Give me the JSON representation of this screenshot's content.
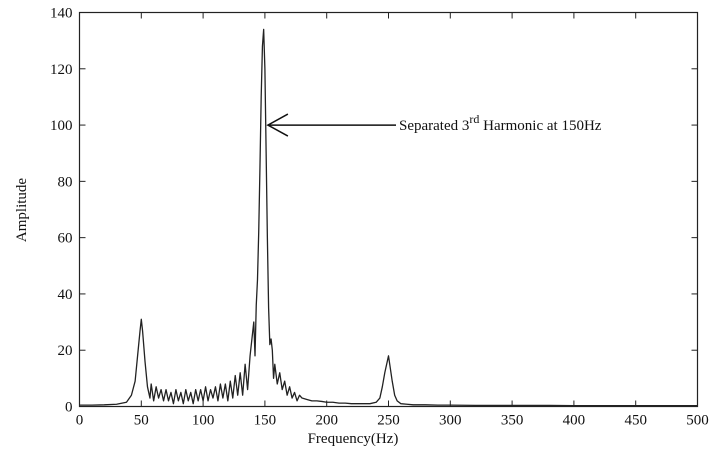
{
  "chart_data": {
    "type": "line",
    "title": "",
    "xlabel": "Frequency(Hz)",
    "ylabel": "Amplitude",
    "xlim": [
      0,
      500
    ],
    "ylim": [
      0,
      140
    ],
    "xticks": [
      "0",
      "50",
      "100",
      "150",
      "200",
      "250",
      "300",
      "350",
      "400",
      "450",
      "500"
    ],
    "yticks": [
      "0",
      "20",
      "40",
      "60",
      "80",
      "100",
      "120",
      "140"
    ],
    "grid": false,
    "legend": "none",
    "line_color": "#222222",
    "annotation": {
      "text_prefix": "Separated 3",
      "superscript": "rd",
      "text_suffix": " Harmonic at 150Hz",
      "target": [
        150,
        100
      ]
    },
    "series": [
      {
        "x": [
          0,
          10,
          20,
          30,
          38,
          42,
          45,
          47,
          49,
          50,
          51,
          53,
          55,
          57,
          58,
          60,
          62,
          64,
          66,
          68,
          70,
          72,
          74,
          76,
          78,
          80,
          82,
          84,
          86,
          88,
          90,
          92,
          94,
          96,
          98,
          100,
          102,
          104,
          106,
          108,
          110,
          112,
          114,
          116,
          118,
          120,
          122,
          124,
          126,
          128,
          130,
          132,
          134,
          136,
          138,
          140,
          141,
          142,
          143,
          144,
          145,
          146,
          147,
          148,
          149,
          150,
          151,
          152,
          153,
          154,
          155,
          156,
          157,
          158,
          160,
          162,
          164,
          166,
          168,
          170,
          172,
          174,
          176,
          178,
          180,
          184,
          188,
          192,
          196,
          200,
          205,
          210,
          215,
          220,
          225,
          230,
          235,
          240,
          243,
          245,
          247,
          249,
          250,
          251,
          253,
          255,
          257,
          260,
          265,
          270,
          280,
          290,
          300,
          320,
          340,
          360,
          380,
          400,
          420,
          440,
          460,
          480,
          500
        ],
        "y": [
          0.5,
          0.5,
          0.6,
          0.8,
          1.5,
          4,
          9,
          18,
          27,
          31,
          27,
          16,
          7,
          3,
          8,
          2,
          7,
          3,
          6,
          2,
          6,
          2,
          5,
          1,
          6,
          2,
          5,
          1,
          6,
          2,
          5,
          1,
          6,
          2,
          6,
          2,
          7,
          2,
          6,
          3,
          7,
          2,
          8,
          3,
          8,
          2,
          9,
          3,
          11,
          4,
          12,
          4,
          15,
          6,
          18,
          26,
          30,
          18,
          36,
          45,
          62,
          85,
          110,
          128,
          134,
          120,
          90,
          60,
          35,
          22,
          24,
          20,
          10,
          15,
          8,
          12,
          6,
          9,
          4,
          7,
          3,
          5,
          2,
          4,
          3,
          2.5,
          2,
          2,
          1.8,
          1.5,
          1.5,
          1.2,
          1.2,
          1,
          1,
          1,
          1,
          1.5,
          3,
          7,
          12,
          16,
          18,
          15,
          9,
          4,
          2,
          1,
          0.8,
          0.6,
          0.6,
          0.5,
          0.5,
          0.4,
          0.4,
          0.4,
          0.4,
          0.3,
          0.3,
          0.3,
          0.3,
          0.3,
          0.3
        ]
      }
    ]
  }
}
